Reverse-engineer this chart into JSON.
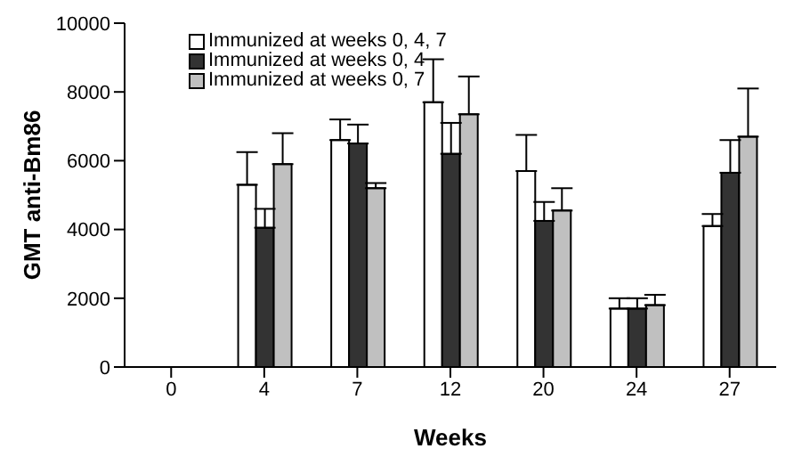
{
  "chart_data": {
    "type": "bar",
    "xlabel": "Weeks",
    "ylabel": "GMT anti-Bm86",
    "categories": [
      "0",
      "4",
      "7",
      "12",
      "20",
      "24",
      "27"
    ],
    "series": [
      {
        "name": "Immunized at weeks 0, 4, 7",
        "color": "#ffffff",
        "values": [
          0,
          5300,
          6600,
          7700,
          5700,
          1700,
          4100
        ],
        "errors": [
          null,
          [
            5300,
            6250
          ],
          [
            6600,
            7200
          ],
          [
            7700,
            8950
          ],
          [
            5700,
            6750
          ],
          [
            1700,
            2000
          ],
          [
            4100,
            4450
          ]
        ]
      },
      {
        "name": "Immunized at weeks 0, 4",
        "color": "#333333",
        "values": [
          0,
          4050,
          6500,
          6200,
          4250,
          1700,
          5650
        ],
        "errors": [
          null,
          [
            4050,
            4600
          ],
          [
            6500,
            7050
          ],
          [
            6200,
            7100
          ],
          [
            4250,
            4800
          ],
          [
            1700,
            2000
          ],
          [
            5650,
            6600
          ]
        ]
      },
      {
        "name": "Immunized at weeks 0, 7",
        "color": "#c0c0c0",
        "values": [
          0,
          5900,
          5200,
          7350,
          4550,
          1800,
          6700
        ],
        "errors": [
          null,
          [
            5900,
            6800
          ],
          [
            5200,
            5350
          ],
          [
            7350,
            8450
          ],
          [
            4550,
            5200
          ],
          [
            1800,
            2100
          ],
          [
            6700,
            8100
          ]
        ]
      }
    ],
    "ylim": [
      0,
      10000
    ],
    "yticks": [
      0,
      2000,
      4000,
      6000,
      8000,
      10000
    ],
    "grid": false,
    "legend": "top left"
  }
}
